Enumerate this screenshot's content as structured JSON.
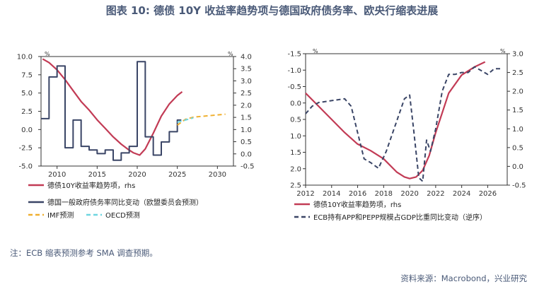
{
  "figure": {
    "title": "图表 10: 德债 10Y 收益率趋势项与德国政府债务率、欧央行缩表进展",
    "note": "注：ECB 缩表预测参考 SMA 调查预期。",
    "source": "资料来源：Macrobond，兴业研究"
  },
  "colors": {
    "yield": "#c23b55",
    "debt": "#3a4566",
    "imf": "#f0b030",
    "oecd": "#6fd6e0",
    "ecb": "#3a4566",
    "text": "#4a5a78"
  },
  "chart_data": [
    {
      "type": "line",
      "left_unit": "%",
      "right_unit": "%",
      "x_ticks": [
        "2010",
        "2015",
        "2020",
        "2025",
        "2030"
      ],
      "xlim": [
        2008,
        2032
      ],
      "y_left_ticks": [
        "10.0",
        "7.5",
        "5.0",
        "2.5",
        "0.0",
        "-2.5",
        "-5.0"
      ],
      "ylim_left": [
        -5.0,
        10.0
      ],
      "y_right_ticks": [
        "4.0",
        "3.5",
        "3.0",
        "2.5",
        "2.0",
        "1.5",
        "1.0",
        "0.5",
        "0.0",
        "-0.5"
      ],
      "ylim_right": [
        -0.5,
        4.0
      ],
      "series": [
        {
          "name": "德债10Y收益率趋势项，rhs",
          "axis": "right",
          "style": "solid",
          "x": [
            2008.2,
            2009.0,
            2010.0,
            2011.0,
            2012.0,
            2013.0,
            2014.0,
            2015.0,
            2016.0,
            2017.0,
            2018.0,
            2018.8,
            2019.5,
            2020.3,
            2021.0,
            2022.0,
            2023.0,
            2024.0,
            2025.0,
            2025.6
          ],
          "y": [
            3.9,
            3.75,
            3.45,
            3.05,
            2.6,
            2.15,
            1.8,
            1.4,
            1.05,
            0.7,
            0.4,
            0.2,
            0.05,
            -0.05,
            0.2,
            0.85,
            1.55,
            2.05,
            2.4,
            2.55
          ]
        },
        {
          "name": "德国一般政府债务率同比变动（欧盟委员会预测）",
          "axis": "left",
          "style": "step",
          "x": [
            2008.0,
            2009.0,
            2010.0,
            2011.0,
            2012.0,
            2013.0,
            2014.0,
            2015.0,
            2016.0,
            2017.0,
            2018.0,
            2019.0,
            2020.0,
            2021.0,
            2022.0,
            2023.0,
            2024.0,
            2025.0
          ],
          "y": [
            1.5,
            7.2,
            8.7,
            -2.5,
            1.3,
            -2.3,
            -2.8,
            -3.3,
            -2.8,
            -4.2,
            -3.2,
            -2.3,
            9.3,
            -1.0,
            -3.5,
            -1.7,
            -0.3,
            1.3
          ]
        },
        {
          "name": "IMF预测",
          "axis": "left",
          "style": "dashed",
          "x": [
            2025.0,
            2026.0,
            2027.0,
            2028.0,
            2029.0,
            2030.0,
            2031.0
          ],
          "y": [
            0.6,
            1.4,
            1.7,
            1.8,
            1.9,
            2.0,
            2.1
          ]
        },
        {
          "name": "OECD预测",
          "axis": "left",
          "style": "dashed",
          "x": [
            2025.0,
            2026.0,
            2027.0
          ],
          "y": [
            1.0,
            1.3,
            1.6
          ]
        }
      ],
      "legend": [
        "德债10Y收益率趋势项，rhs",
        "德国一般政府债务率同比变动（欧盟委员会预测）",
        "IMF预测",
        "OECD预测"
      ],
      "legend_position": "bottom"
    },
    {
      "type": "line",
      "left_unit": "%",
      "right_unit": "%",
      "x_ticks": [
        "2012",
        "2014",
        "2016",
        "2018",
        "2020",
        "2022",
        "2024",
        "2026"
      ],
      "xlim": [
        2012,
        2027.5
      ],
      "y_left_ticks": [
        "-1.5",
        "-1.0",
        "-0.5",
        "0.0",
        "0.5",
        "1.0",
        "1.5",
        "2.0",
        "2.5"
      ],
      "ylim_left": [
        -1.5,
        2.5
      ],
      "y_left_inverted": true,
      "y_right_ticks": [
        "3.0",
        "2.5",
        "2.0",
        "1.5",
        "1.0",
        "0.5",
        "0.0",
        "-0.5"
      ],
      "ylim_right": [
        -0.5,
        3.0
      ],
      "series": [
        {
          "name": "德债10Y收益率趋势项，rhs",
          "axis": "left",
          "style": "solid",
          "x": [
            2012.0,
            2013.0,
            2014.0,
            2015.0,
            2016.0,
            2017.0,
            2018.0,
            2019.0,
            2019.6,
            2020.0,
            2020.5,
            2021.0,
            2021.5,
            2022.0,
            2023.0,
            2024.0,
            2025.0,
            2025.8
          ],
          "y": [
            -0.3,
            0.1,
            0.5,
            0.9,
            1.25,
            1.45,
            1.7,
            2.1,
            2.25,
            2.3,
            2.25,
            2.05,
            1.6,
            0.9,
            -0.3,
            -0.85,
            -1.1,
            -1.25
          ]
        },
        {
          "name": "ECB持有APP和PEPP规模占GDP比重同比变动（逆序）",
          "axis": "right",
          "style": "dashed",
          "x": [
            2012.0,
            2012.5,
            2013.0,
            2014.0,
            2015.0,
            2015.5,
            2016.0,
            2016.5,
            2017.0,
            2017.6,
            2018.2,
            2019.0,
            2019.6,
            2020.0,
            2020.3,
            2020.7,
            2021.0,
            2021.3,
            2021.6,
            2022.0,
            2022.5,
            2023.0,
            2023.5,
            2024.0,
            2024.5,
            2025.0,
            2025.5,
            2026.0,
            2026.5,
            2027.0
          ],
          "y": [
            1.4,
            1.6,
            1.7,
            1.75,
            1.8,
            1.6,
            0.9,
            0.2,
            0.1,
            -0.05,
            0.4,
            1.2,
            1.8,
            1.9,
            1.0,
            -0.3,
            -0.4,
            0.7,
            0.4,
            1.0,
            2.0,
            2.45,
            2.45,
            2.5,
            2.5,
            2.65,
            2.55,
            2.45,
            2.6,
            2.6
          ]
        }
      ],
      "legend": [
        "德债10Y收益率趋势项，rhs",
        "ECB持有APP和PEPP规模占GDP比重同比变动（逆序）"
      ],
      "legend_position": "bottom"
    }
  ]
}
